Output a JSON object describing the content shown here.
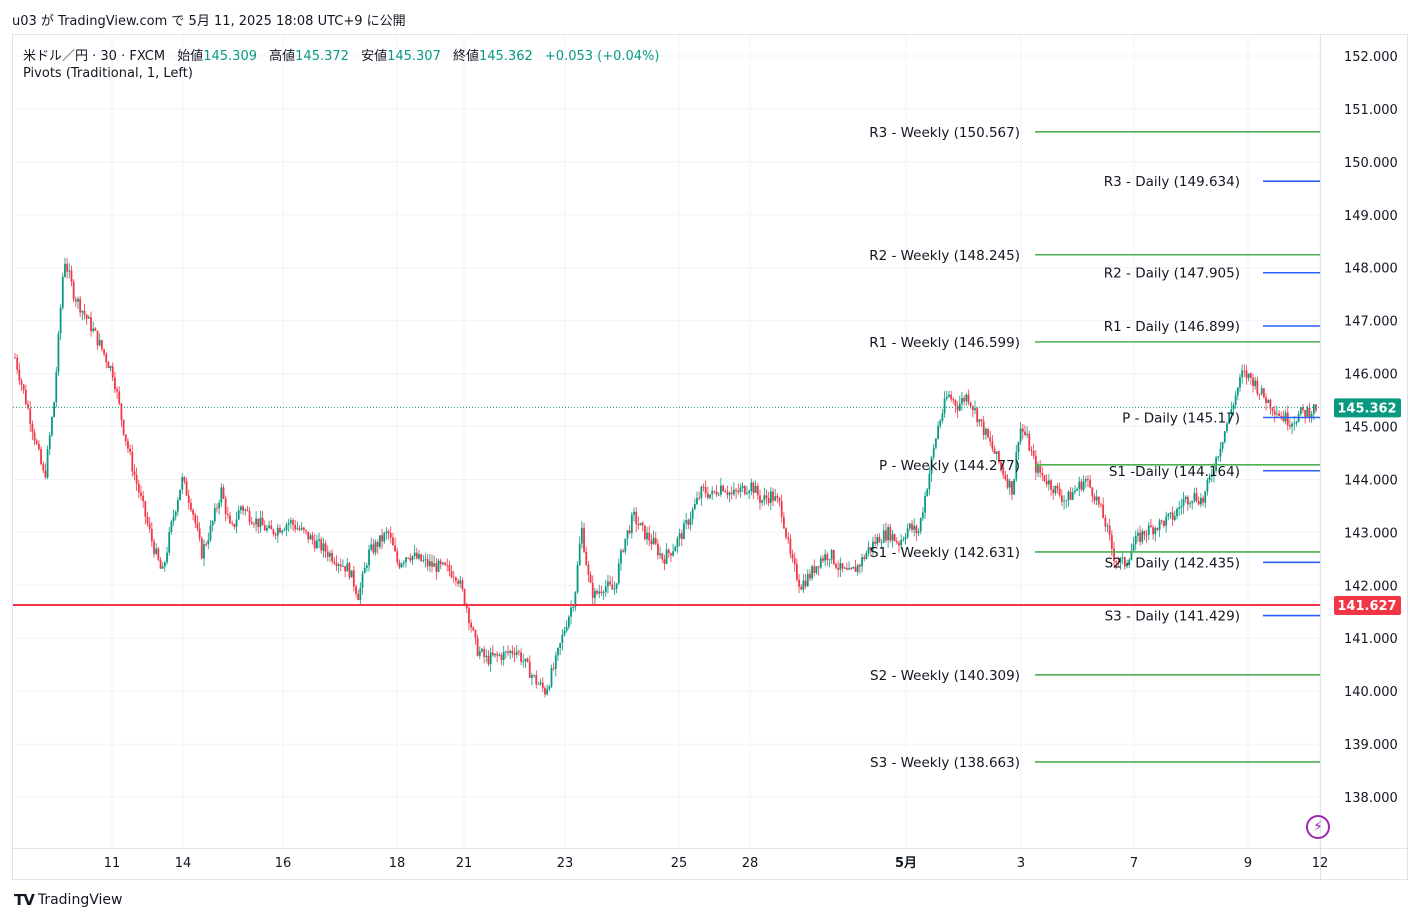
{
  "header": {
    "publish_line": "u03 が TradingView.com で 5月 11, 2025 18:08 UTC+9 に公開"
  },
  "legend": {
    "symbol": "米ドル／円 · 30 · FXCM",
    "open_label": "始値",
    "open": "145.309",
    "high_label": "高値",
    "high": "145.372",
    "low_label": "安値",
    "low": "145.307",
    "close_label": "終値",
    "close": "145.362",
    "change": "+0.053 (+0.04%)",
    "indicator": "Pivots (Traditional, 1, Left)"
  },
  "footer": {
    "brand": "TradingView"
  },
  "colors": {
    "up": "#089981",
    "down": "#f23645",
    "weekly": "#4caf50",
    "daily": "#2962ff",
    "price_tag": "#089981",
    "hline": "#f23645"
  },
  "chart_data": {
    "type": "candlestick",
    "y_axis_ticks": [
      "152.000",
      "151.000",
      "150.000",
      "149.000",
      "148.000",
      "147.000",
      "146.000",
      "145.000",
      "144.000",
      "143.000",
      "142.000",
      "141.000",
      "140.000",
      "139.000",
      "138.000"
    ],
    "ylim": [
      137.0,
      152.4
    ],
    "x_axis_ticks": [
      "11",
      "14",
      "16",
      "18",
      "21",
      "23",
      "25",
      "28",
      "5月",
      "3",
      "7",
      "9",
      "12"
    ],
    "last_price": "145.362",
    "horizontal_line": {
      "value": 141.627,
      "label": "141.627"
    },
    "pivot_levels": [
      {
        "label": "R3 - Weekly (150.567)",
        "value": 150.567,
        "kind": "weekly"
      },
      {
        "label": "R2 - Weekly (148.245)",
        "value": 148.245,
        "kind": "weekly"
      },
      {
        "label": "R1 - Weekly (146.599)",
        "value": 146.599,
        "kind": "weekly"
      },
      {
        "label": "P - Weekly (144.277)",
        "value": 144.277,
        "kind": "weekly"
      },
      {
        "label": "S1 - Weekly (142.631)",
        "value": 142.631,
        "kind": "weekly"
      },
      {
        "label": "S2 - Weekly (140.309)",
        "value": 140.309,
        "kind": "weekly"
      },
      {
        "label": "S3 - Weekly (138.663)",
        "value": 138.663,
        "kind": "weekly"
      },
      {
        "label": "R3 - Daily (149.634)",
        "value": 149.634,
        "kind": "daily"
      },
      {
        "label": "R2 - Daily (147.905)",
        "value": 147.905,
        "kind": "daily"
      },
      {
        "label": "R1 - Daily (146.899)",
        "value": 146.899,
        "kind": "daily"
      },
      {
        "label": "P - Daily (145.17)",
        "value": 145.17,
        "kind": "daily"
      },
      {
        "label": "S1 -Daily (144.164)",
        "value": 144.164,
        "kind": "daily"
      },
      {
        "label": "S2 - Daily (142.435)",
        "value": 142.435,
        "kind": "daily"
      },
      {
        "label": "S3 - Daily (141.429)",
        "value": 141.429,
        "kind": "daily"
      }
    ],
    "price_path": [
      [
        0,
        146.3
      ],
      [
        1.5,
        145.2
      ],
      [
        3,
        144.0
      ],
      [
        4,
        145.5
      ],
      [
        5,
        148.2
      ],
      [
        6,
        147.5
      ],
      [
        8,
        146.8
      ],
      [
        10,
        146.0
      ],
      [
        11,
        145.0
      ],
      [
        12,
        144.2
      ],
      [
        13,
        143.5
      ],
      [
        14,
        142.8
      ],
      [
        15,
        142.2
      ],
      [
        16,
        143.2
      ],
      [
        17,
        144.0
      ],
      [
        18,
        143.5
      ],
      [
        19,
        142.6
      ],
      [
        20,
        143.1
      ],
      [
        21,
        143.8
      ],
      [
        22,
        143.0
      ],
      [
        23,
        143.5
      ],
      [
        24,
        143.3
      ],
      [
        26,
        143.0
      ],
      [
        28,
        143.2
      ],
      [
        30,
        142.9
      ],
      [
        32,
        142.6
      ],
      [
        34,
        142.3
      ],
      [
        35,
        141.8
      ],
      [
        36,
        142.6
      ],
      [
        38,
        143.0
      ],
      [
        39,
        142.4
      ],
      [
        40,
        142.6
      ],
      [
        42,
        142.4
      ],
      [
        44,
        142.3
      ],
      [
        45,
        142.2
      ],
      [
        46,
        141.6
      ],
      [
        47,
        140.8
      ],
      [
        48,
        140.6
      ],
      [
        50,
        140.7
      ],
      [
        51,
        140.8
      ],
      [
        52,
        140.5
      ],
      [
        53,
        140.2
      ],
      [
        54,
        140.0
      ],
      [
        55,
        140.5
      ],
      [
        56,
        141.2
      ],
      [
        57,
        141.8
      ],
      [
        57.7,
        143.1
      ],
      [
        58.5,
        142.0
      ],
      [
        59,
        141.8
      ],
      [
        60,
        142.0
      ],
      [
        61,
        141.9
      ],
      [
        62,
        142.8
      ],
      [
        63,
        143.3
      ],
      [
        64,
        143.0
      ],
      [
        65,
        142.8
      ],
      [
        66,
        142.5
      ],
      [
        67,
        142.7
      ],
      [
        68,
        143.0
      ],
      [
        69,
        143.4
      ],
      [
        70,
        143.8
      ],
      [
        71,
        143.7
      ],
      [
        72,
        143.9
      ],
      [
        73,
        143.7
      ],
      [
        74,
        143.8
      ],
      [
        75,
        143.9
      ],
      [
        76,
        143.6
      ],
      [
        77,
        143.7
      ],
      [
        78,
        143.5
      ],
      [
        79,
        142.5
      ],
      [
        80,
        142.0
      ],
      [
        81,
        142.2
      ],
      [
        82,
        142.5
      ],
      [
        83,
        142.6
      ],
      [
        84,
        142.3
      ],
      [
        85,
        142.2
      ],
      [
        86,
        142.4
      ],
      [
        87,
        142.7
      ],
      [
        88,
        142.9
      ],
      [
        89,
        143.0
      ],
      [
        90,
        142.8
      ],
      [
        91,
        143.1
      ],
      [
        92,
        143.0
      ],
      [
        93,
        144.0
      ],
      [
        94,
        145.0
      ],
      [
        95,
        145.6
      ],
      [
        96,
        145.4
      ],
      [
        97,
        145.6
      ],
      [
        98,
        145.2
      ],
      [
        99,
        144.8
      ],
      [
        100,
        144.4
      ],
      [
        101,
        144.0
      ],
      [
        101.6,
        143.8
      ],
      [
        102.3,
        145.0
      ],
      [
        103,
        144.8
      ],
      [
        104,
        144.2
      ],
      [
        105,
        144.0
      ],
      [
        106,
        143.8
      ],
      [
        107,
        143.6
      ],
      [
        108,
        143.8
      ],
      [
        109,
        144.0
      ],
      [
        110,
        143.7
      ],
      [
        111,
        143.2
      ],
      [
        112,
        142.5
      ],
      [
        113,
        142.4
      ],
      [
        114,
        142.8
      ],
      [
        115,
        143.0
      ],
      [
        116,
        143.1
      ],
      [
        117,
        143.2
      ],
      [
        118,
        143.3
      ],
      [
        119,
        143.6
      ],
      [
        120,
        143.7
      ],
      [
        121,
        143.6
      ],
      [
        122,
        144.2
      ],
      [
        123,
        144.8
      ],
      [
        124,
        145.4
      ],
      [
        125,
        146.0
      ],
      [
        126,
        145.9
      ],
      [
        127,
        145.6
      ],
      [
        128,
        145.4
      ],
      [
        129,
        145.2
      ],
      [
        130,
        145.1
      ],
      [
        131,
        145.25
      ],
      [
        132,
        145.3
      ],
      [
        132.5,
        145.36
      ]
    ]
  }
}
